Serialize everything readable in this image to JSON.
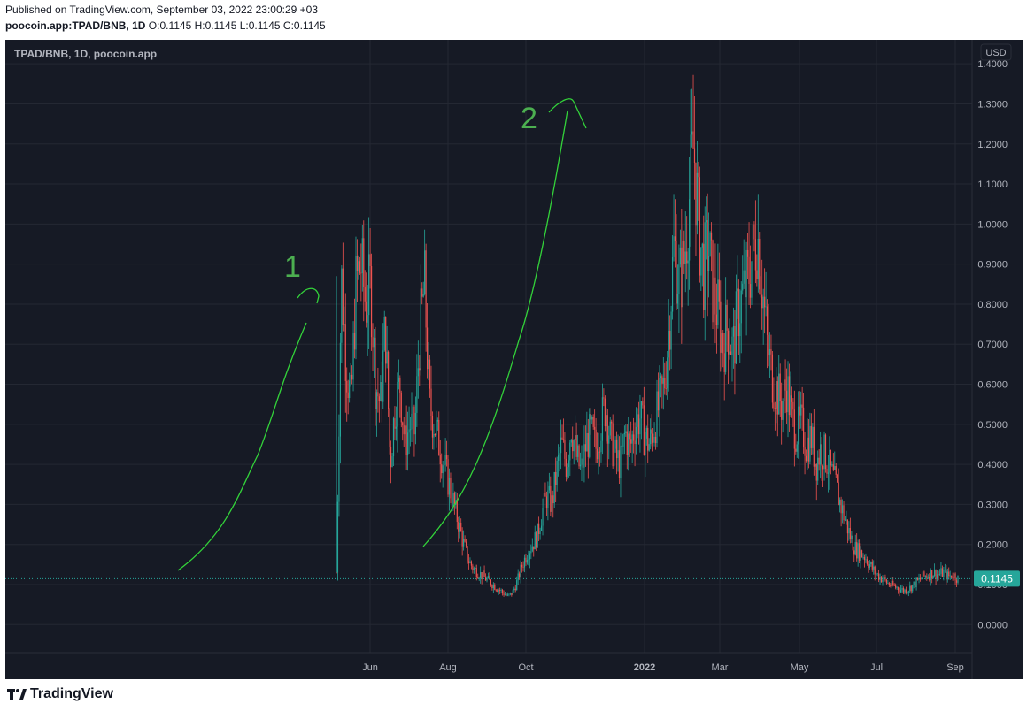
{
  "header": {
    "published": "Published on TradingView.com, September 03, 2022 23:00:29 +03",
    "symbol": "poocoin.app:TPAD/BNB, 1D",
    "ohlc": "O:0.1145 H:0.1145 L:0.1145 C:0.1145"
  },
  "legend": {
    "title": "TPAD/BNB, 1D, poocoin.app"
  },
  "price_axis": {
    "currency": "USD",
    "current_label": "0.1145"
  },
  "annotations": {
    "one": "1",
    "two": "2"
  },
  "footer": {
    "brand": "TradingView"
  },
  "colors": {
    "up": "#26a69a",
    "down": "#ef5350",
    "arrow": "#33d33a",
    "label": "#4caf50"
  },
  "chart_data": {
    "type": "candlestick",
    "x_ticks": [
      "Jun",
      "Aug",
      "Oct",
      "2022",
      "Mar",
      "May",
      "Jul",
      "Sep"
    ],
    "y_ticks": [
      "0.0000",
      "0.1000",
      "0.2000",
      "0.3000",
      "0.4000",
      "0.5000",
      "0.6000",
      "0.7000",
      "0.8000",
      "0.9000",
      "1.0000",
      "1.1000",
      "1.2000",
      "1.3000",
      "1.4000"
    ],
    "ylim": [
      -0.07,
      1.46
    ],
    "current_price": 0.1145,
    "grid": true,
    "series_approx_close": [
      [
        0,
        0.13
      ],
      [
        1,
        0.87
      ],
      [
        2,
        0.65
      ],
      [
        3,
        0.55
      ],
      [
        4,
        0.85
      ],
      [
        5,
        0.9
      ],
      [
        6,
        0.8
      ],
      [
        7,
        0.85
      ],
      [
        8,
        0.6
      ],
      [
        9,
        0.55
      ],
      [
        10,
        0.75
      ],
      [
        11,
        0.4
      ],
      [
        12,
        0.55
      ],
      [
        13,
        0.6
      ],
      [
        14,
        0.45
      ],
      [
        15,
        0.5
      ],
      [
        16,
        0.48
      ],
      [
        17,
        0.72
      ],
      [
        18,
        0.85
      ],
      [
        19,
        0.55
      ],
      [
        20,
        0.5
      ],
      [
        21,
        0.45
      ],
      [
        22,
        0.4
      ],
      [
        23,
        0.35
      ],
      [
        24,
        0.3
      ],
      [
        25,
        0.25
      ],
      [
        26,
        0.2
      ],
      [
        27,
        0.16
      ],
      [
        28,
        0.14
      ],
      [
        29,
        0.13
      ],
      [
        30,
        0.12
      ],
      [
        31,
        0.11
      ],
      [
        32,
        0.1
      ],
      [
        33,
        0.09
      ],
      [
        34,
        0.08
      ],
      [
        35,
        0.07
      ],
      [
        36,
        0.08
      ],
      [
        37,
        0.11
      ],
      [
        38,
        0.15
      ],
      [
        39,
        0.18
      ],
      [
        40,
        0.2
      ],
      [
        41,
        0.22
      ],
      [
        42,
        0.28
      ],
      [
        43,
        0.32
      ],
      [
        44,
        0.3
      ],
      [
        45,
        0.38
      ],
      [
        46,
        0.45
      ],
      [
        47,
        0.4
      ],
      [
        48,
        0.5
      ],
      [
        49,
        0.42
      ],
      [
        50,
        0.38
      ],
      [
        51,
        0.45
      ],
      [
        52,
        0.48
      ],
      [
        53,
        0.44
      ],
      [
        54,
        0.5
      ],
      [
        55,
        0.55
      ],
      [
        56,
        0.46
      ],
      [
        57,
        0.42
      ],
      [
        58,
        0.4
      ],
      [
        59,
        0.48
      ],
      [
        60,
        0.44
      ],
      [
        61,
        0.5
      ],
      [
        62,
        0.52
      ],
      [
        63,
        0.47
      ],
      [
        64,
        0.45
      ],
      [
        65,
        0.5
      ],
      [
        66,
        0.55
      ],
      [
        67,
        0.6
      ],
      [
        68,
        0.75
      ],
      [
        69,
        0.95
      ],
      [
        70,
        0.85
      ],
      [
        71,
        0.9
      ],
      [
        72,
        1.05
      ],
      [
        73,
        1.2
      ],
      [
        74,
        1.0
      ],
      [
        75,
        0.88
      ],
      [
        76,
        0.95
      ],
      [
        77,
        0.82
      ],
      [
        78,
        0.78
      ],
      [
        79,
        0.7
      ],
      [
        80,
        0.75
      ],
      [
        81,
        0.68
      ],
      [
        82,
        0.78
      ],
      [
        83,
        0.82
      ],
      [
        84,
        0.86
      ],
      [
        85,
        0.92
      ],
      [
        86,
        0.98
      ],
      [
        87,
        0.85
      ],
      [
        88,
        0.7
      ],
      [
        89,
        0.62
      ],
      [
        90,
        0.58
      ],
      [
        91,
        0.55
      ],
      [
        92,
        0.6
      ],
      [
        93,
        0.52
      ],
      [
        94,
        0.48
      ],
      [
        95,
        0.5
      ],
      [
        96,
        0.45
      ],
      [
        97,
        0.47
      ],
      [
        98,
        0.4
      ],
      [
        99,
        0.44
      ],
      [
        100,
        0.42
      ],
      [
        101,
        0.38
      ],
      [
        102,
        0.35
      ],
      [
        103,
        0.3
      ],
      [
        104,
        0.26
      ],
      [
        105,
        0.22
      ],
      [
        106,
        0.19
      ],
      [
        107,
        0.18
      ],
      [
        108,
        0.17
      ],
      [
        109,
        0.15
      ],
      [
        110,
        0.13
      ],
      [
        111,
        0.12
      ],
      [
        112,
        0.11
      ],
      [
        113,
        0.1
      ],
      [
        114,
        0.095
      ],
      [
        115,
        0.09
      ],
      [
        116,
        0.085
      ],
      [
        117,
        0.09
      ],
      [
        118,
        0.1
      ],
      [
        119,
        0.11
      ],
      [
        120,
        0.12
      ],
      [
        121,
        0.125
      ],
      [
        122,
        0.13
      ],
      [
        123,
        0.125
      ],
      [
        124,
        0.13
      ],
      [
        125,
        0.12
      ],
      [
        126,
        0.125
      ],
      [
        127,
        0.115
      ]
    ]
  }
}
